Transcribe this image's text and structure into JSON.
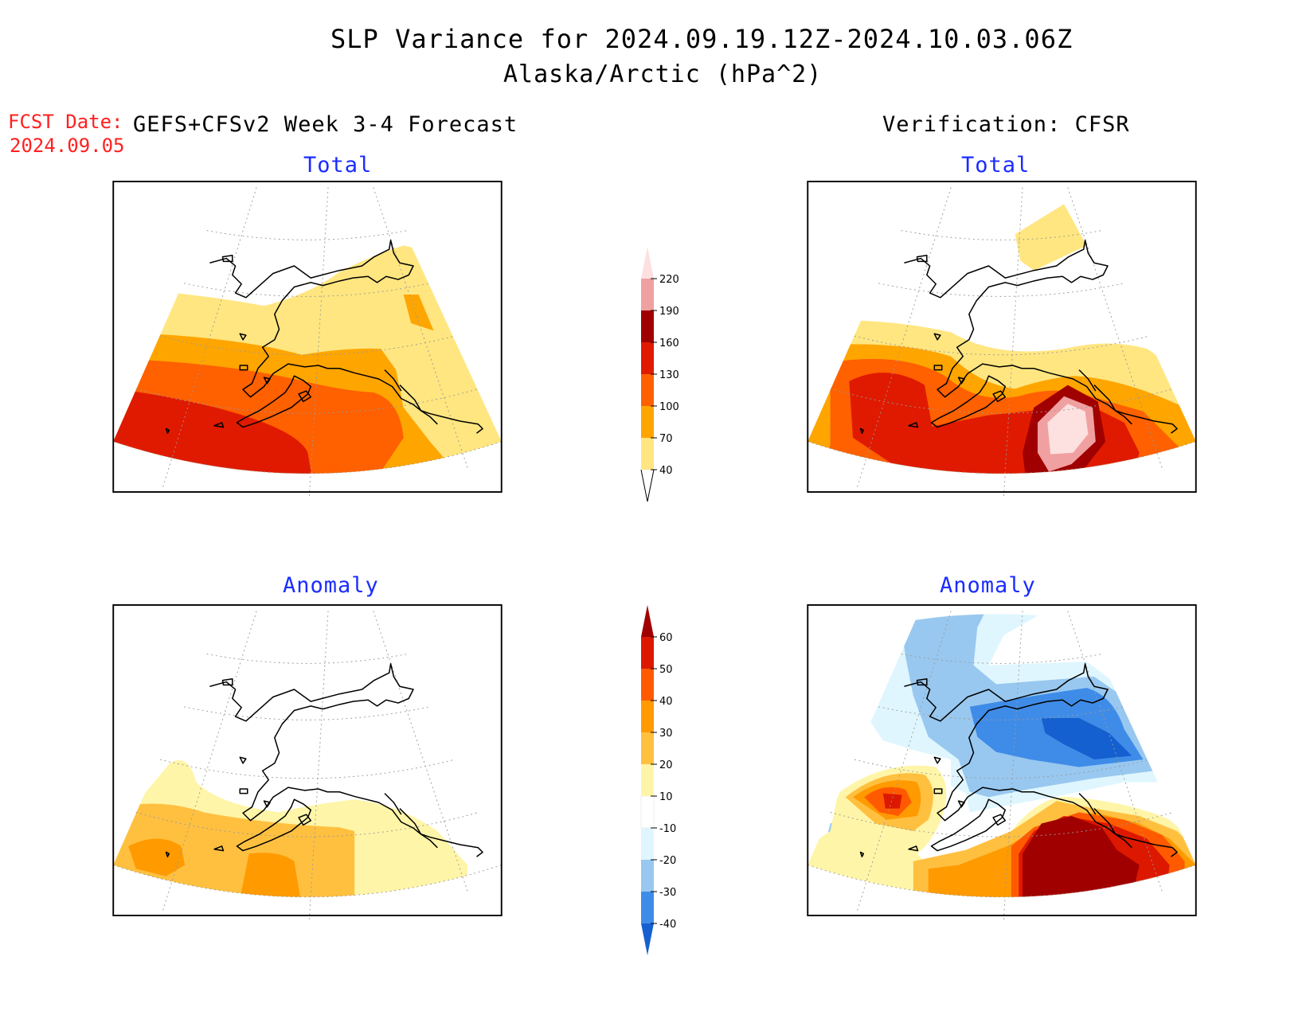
{
  "header": {
    "title": "SLP Variance for 2024.09.19.12Z-2024.10.03.06Z",
    "subtitle": "Alaska/Arctic (hPa^2)"
  },
  "fcst": {
    "label": "FCST Date:",
    "date": "2024.09.05"
  },
  "columns": {
    "left": "GEFS+CFSv2 Week 3-4 Forecast",
    "right": "Verification: CFSR"
  },
  "panels": {
    "fc_total": "Total",
    "ver_total": "Total",
    "fc_anom": "Anomaly",
    "ver_anom": "Anomaly"
  },
  "colorbar_total": {
    "ticks": [
      "40",
      "70",
      "100",
      "130",
      "160",
      "190",
      "220"
    ],
    "colors": [
      "#ffe680",
      "#ffa500",
      "#ff6000",
      "#e01a00",
      "#a00000",
      "#f0a0a0",
      "#fde0e0"
    ]
  },
  "colorbar_anom": {
    "ticks": [
      "-40",
      "-30",
      "-20",
      "-10",
      "10",
      "20",
      "30",
      "40",
      "50",
      "60"
    ],
    "colors": [
      "#1560d0",
      "#3f8ce8",
      "#98c8f0",
      "#dff6ff",
      "#ffffff",
      "#fff5a8",
      "#ffc040",
      "#ff9a00",
      "#ff5a00",
      "#dd1800",
      "#a00000"
    ]
  },
  "colors": {
    "title_text": "#000000",
    "panel_title": "#1a2cff",
    "fcst_text": "#ff2020"
  }
}
